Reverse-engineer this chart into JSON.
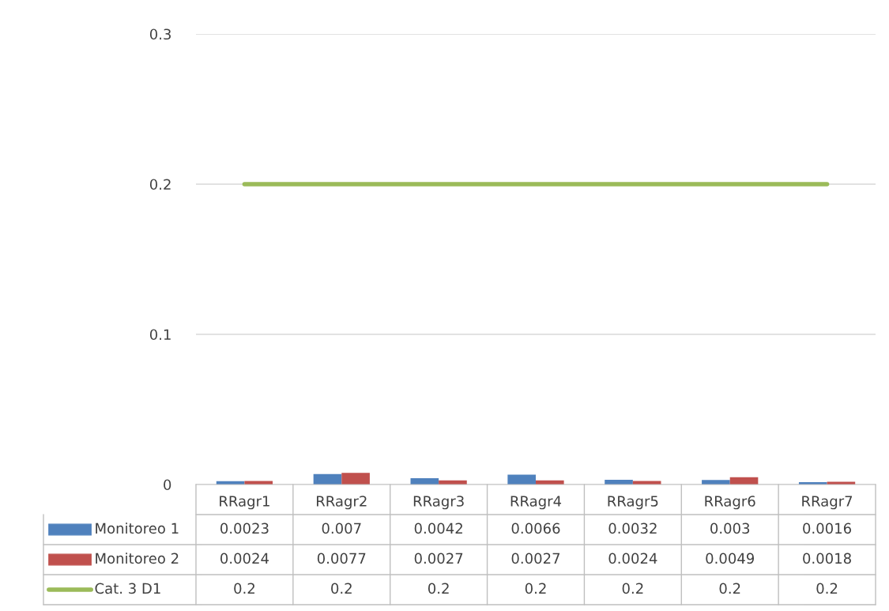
{
  "chart_data": {
    "type": "bar",
    "categories": [
      "RRagr1",
      "RRagr2",
      "RRagr3",
      "RRagr4",
      "RRagr5",
      "RRagr6",
      "RRagr7"
    ],
    "series": [
      {
        "name": "Monitoreo 1",
        "color": "#4f81bd",
        "values": [
          0.0023,
          0.007,
          0.0042,
          0.0066,
          0.0032,
          0.003,
          0.0016
        ]
      },
      {
        "name": "Monitoreo 2",
        "color": "#c0504d",
        "values": [
          0.0024,
          0.0077,
          0.0027,
          0.0027,
          0.0024,
          0.0049,
          0.0018
        ]
      },
      {
        "name": "Cat. 3 D1",
        "type": "line",
        "color": "#9bbb59",
        "values": [
          0.2,
          0.2,
          0.2,
          0.2,
          0.2,
          0.2,
          0.2
        ]
      }
    ],
    "ylim": [
      0,
      0.3
    ],
    "yticks": [
      0,
      0.1,
      0.2,
      0.3
    ],
    "grid": "y",
    "data_labels": true,
    "legend": "bottom"
  }
}
